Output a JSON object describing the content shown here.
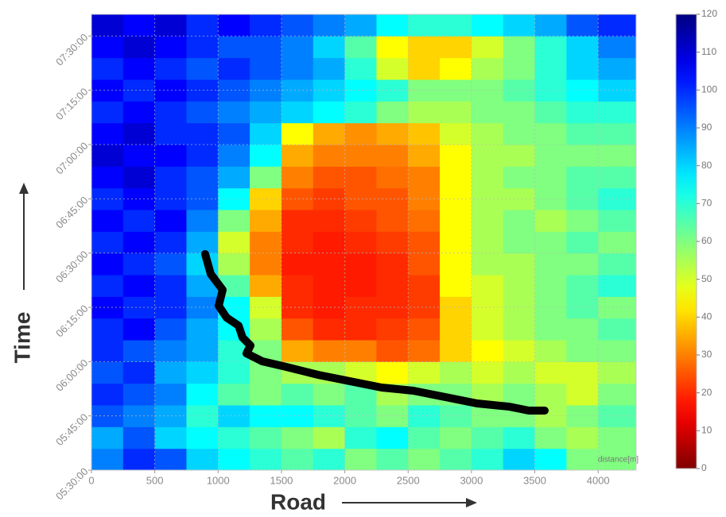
{
  "chart_data": {
    "type": "heatmap",
    "x_label": "Road",
    "y_label": "Time",
    "axis_note": "distance[m]",
    "x_bins": [
      0,
      250,
      500,
      750,
      1000,
      1250,
      1500,
      1750,
      2000,
      2250,
      2500,
      2750,
      3000,
      3250,
      3500,
      3750,
      4000,
      4250,
      4300
    ],
    "y_bins": [
      "05:30:00",
      "05:36:00",
      "05:42:00",
      "05:48:00",
      "05:54:00",
      "06:00:00",
      "06:06:00",
      "06:12:00",
      "06:18:00",
      "06:24:00",
      "06:30:00",
      "06:36:00",
      "06:42:00",
      "06:48:00",
      "06:54:00",
      "07:00:00",
      "07:06:00",
      "07:12:00",
      "07:18:00",
      "07:24:00",
      "07:30:00",
      "07:36:00"
    ],
    "values": [
      [
        90,
        100,
        95,
        80,
        75,
        70,
        65,
        70,
        60,
        65,
        60,
        65,
        70,
        80,
        75,
        60,
        60,
        60
      ],
      [
        85,
        95,
        80,
        75,
        70,
        65,
        60,
        55,
        70,
        75,
        65,
        60,
        65,
        70,
        60,
        55,
        60,
        60
      ],
      [
        95,
        90,
        85,
        70,
        80,
        75,
        75,
        70,
        65,
        60,
        70,
        65,
        60,
        60,
        55,
        60,
        65,
        65
      ],
      [
        100,
        95,
        90,
        75,
        65,
        60,
        65,
        60,
        65,
        55,
        60,
        60,
        55,
        60,
        55,
        50,
        60,
        60
      ],
      [
        95,
        100,
        85,
        80,
        70,
        60,
        55,
        55,
        50,
        45,
        50,
        55,
        50,
        55,
        50,
        50,
        55,
        55
      ],
      [
        100,
        95,
        90,
        85,
        70,
        60,
        35,
        30,
        30,
        25,
        28,
        40,
        45,
        50,
        55,
        60,
        60,
        60
      ],
      [
        100,
        105,
        95,
        85,
        75,
        55,
        25,
        20,
        20,
        22,
        25,
        40,
        50,
        55,
        60,
        60,
        65,
        65
      ],
      [
        105,
        100,
        100,
        90,
        75,
        50,
        20,
        18,
        20,
        20,
        22,
        40,
        50,
        55,
        60,
        65,
        60,
        60
      ],
      [
        100,
        105,
        100,
        85,
        65,
        35,
        20,
        18,
        18,
        20,
        22,
        45,
        50,
        55,
        60,
        65,
        70,
        70
      ],
      [
        105,
        100,
        95,
        80,
        55,
        30,
        18,
        18,
        18,
        20,
        25,
        45,
        55,
        55,
        60,
        60,
        65,
        65
      ],
      [
        100,
        105,
        100,
        85,
        50,
        30,
        20,
        18,
        20,
        22,
        25,
        45,
        55,
        60,
        60,
        65,
        60,
        60
      ],
      [
        105,
        100,
        105,
        90,
        60,
        35,
        20,
        20,
        22,
        25,
        28,
        45,
        55,
        60,
        55,
        60,
        65,
        65
      ],
      [
        100,
        105,
        100,
        95,
        75,
        40,
        25,
        22,
        25,
        25,
        30,
        45,
        55,
        55,
        60,
        65,
        70,
        70
      ],
      [
        105,
        110,
        100,
        95,
        85,
        60,
        30,
        25,
        25,
        28,
        30,
        45,
        55,
        60,
        60,
        65,
        65,
        65
      ],
      [
        110,
        105,
        105,
        100,
        90,
        75,
        35,
        30,
        30,
        30,
        35,
        45,
        55,
        55,
        60,
        60,
        60,
        60
      ],
      [
        105,
        110,
        100,
        100,
        95,
        80,
        45,
        35,
        32,
        35,
        38,
        50,
        55,
        60,
        60,
        65,
        65,
        65
      ],
      [
        100,
        105,
        100,
        95,
        90,
        85,
        80,
        75,
        70,
        60,
        55,
        55,
        60,
        60,
        65,
        70,
        70,
        70
      ],
      [
        105,
        100,
        105,
        100,
        95,
        90,
        85,
        80,
        75,
        70,
        60,
        60,
        60,
        65,
        70,
        75,
        80,
        80
      ],
      [
        100,
        105,
        100,
        95,
        100,
        95,
        90,
        85,
        70,
        50,
        40,
        45,
        55,
        60,
        70,
        80,
        85,
        85
      ],
      [
        105,
        110,
        105,
        100,
        95,
        95,
        90,
        80,
        65,
        45,
        40,
        40,
        50,
        60,
        70,
        80,
        90,
        90
      ],
      [
        110,
        105,
        110,
        100,
        105,
        100,
        95,
        90,
        85,
        75,
        70,
        70,
        75,
        80,
        85,
        95,
        100,
        100
      ]
    ],
    "xlim": [
      0,
      4300
    ],
    "ylim": [
      "05:30:00",
      "07:36:00"
    ],
    "xticks": [
      0,
      500,
      1000,
      1500,
      2000,
      2500,
      3000,
      3500,
      4000
    ],
    "yticks": [
      "05:30:00",
      "05:45:00",
      "06:00:00",
      "06:15:00",
      "06:30:00",
      "06:45:00",
      "07:00:00",
      "07:15:00",
      "07:30:00"
    ],
    "colorbar": {
      "lim": [
        0,
        120
      ],
      "ticks": [
        0,
        10,
        20,
        30,
        40,
        50,
        60,
        70,
        80,
        90,
        100,
        110,
        120
      ]
    },
    "colormap": "jet_r",
    "grid": true
  }
}
